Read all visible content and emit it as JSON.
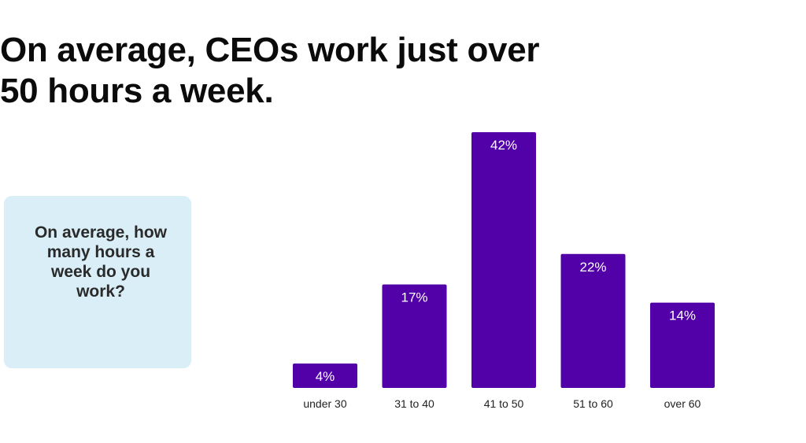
{
  "headline": {
    "line1": "On average, CEOs work just over",
    "line2": "50 hours a week."
  },
  "question": {
    "line1": "On average, how",
    "line2": "many hours a",
    "line3": "week do you",
    "line4": "work?"
  },
  "colors": {
    "bar": "#5200a8",
    "card_background": "#d9eef6",
    "headline": "#0b0b0b"
  },
  "chart_data": {
    "type": "bar",
    "title": "",
    "xlabel": "",
    "ylabel": "",
    "categories": [
      "under 30",
      "31 to 40",
      "41 to 50",
      "51 to 60",
      "over 60"
    ],
    "values": [
      4,
      17,
      42,
      22,
      14
    ],
    "value_labels": [
      "4%",
      "17%",
      "42%",
      "22%",
      "14%"
    ],
    "ylim": [
      0,
      42
    ],
    "grid": false,
    "legend": "none"
  }
}
